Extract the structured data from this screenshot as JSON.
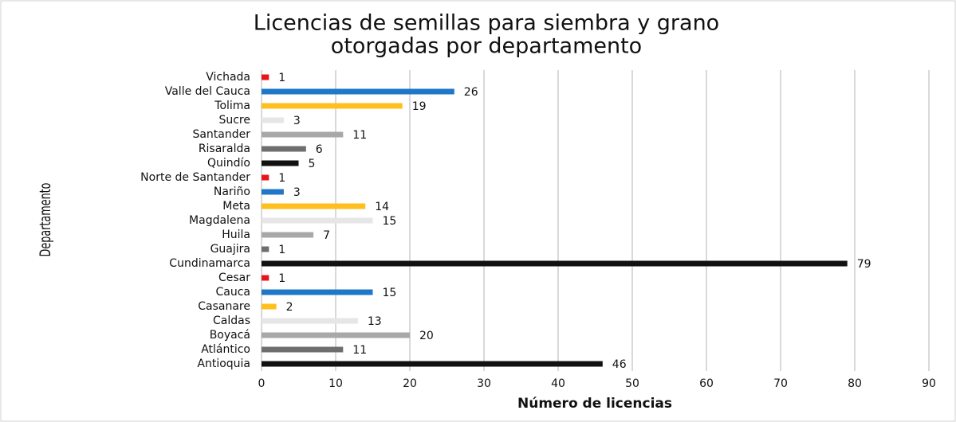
{
  "chart_data": {
    "type": "bar",
    "orientation": "horizontal",
    "title": [
      "Licencias de semillas para siembra y grano",
      "otorgadas por departamento"
    ],
    "x_label": "Número de licencias",
    "y_label": "Departamento",
    "categories": [
      "Vichada",
      "Valle del Cauca",
      "Tolima",
      "Sucre",
      "Santander",
      "Risaralda",
      "Quindío",
      "Norte de Santander",
      "Nariño",
      "Meta",
      "Magdalena",
      "Huila",
      "Guajira",
      "Cundinamarca",
      "Cesar",
      "Cauca",
      "Casanare",
      "Caldas",
      "Boyacá",
      "Atlántico",
      "Antioquia"
    ],
    "values": [
      1,
      26,
      19,
      3,
      11,
      6,
      5,
      1,
      3,
      14,
      15,
      7,
      1,
      79,
      1,
      15,
      2,
      13,
      20,
      11,
      46
    ],
    "colors": [
      "#e8141c",
      "#1f77c8",
      "#ffbf1f",
      "#e6e6e6",
      "#a8a8a8",
      "#6e6e6e",
      "#111111",
      "#e8141c",
      "#1f77c8",
      "#ffbf1f",
      "#e6e6e6",
      "#a8a8a8",
      "#6e6e6e",
      "#111111",
      "#e8141c",
      "#1f77c8",
      "#ffbf1f",
      "#e6e6e6",
      "#a8a8a8",
      "#6e6e6e",
      "#111111"
    ],
    "xlim": [
      0,
      90
    ],
    "xticks": [
      0,
      10,
      20,
      30,
      40,
      50,
      60,
      70,
      80,
      90
    ],
    "grid": true
  }
}
